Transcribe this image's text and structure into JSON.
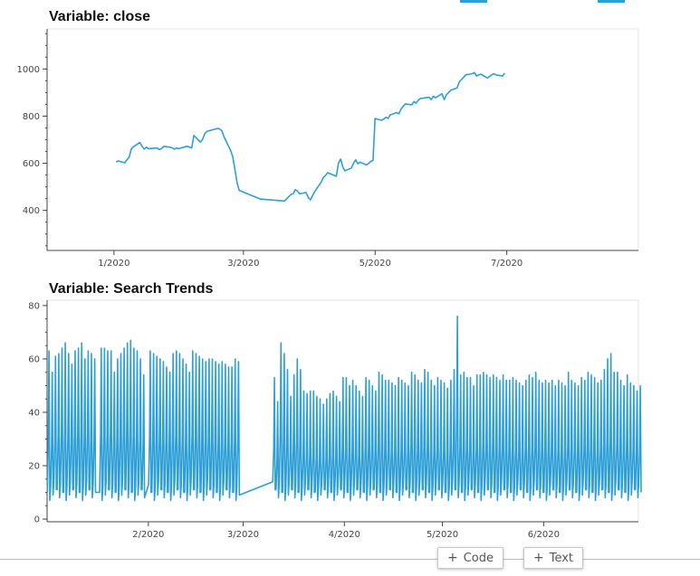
{
  "charts": {
    "close_title": "Variable: close",
    "trends_title": "Variable: Search Trends"
  },
  "toolbar": {
    "code_label": "Code",
    "text_label": "Text",
    "plus_glyph": "+"
  },
  "colors": {
    "series": "#2e9fd6",
    "axis": "#444444",
    "frame": "#e6e6e6"
  },
  "chart_data": [
    {
      "type": "line",
      "title": "Variable: close",
      "xlabel": "",
      "ylabel": "",
      "x_ticks": [
        "1/2020",
        "3/2020",
        "5/2020",
        "7/2020"
      ],
      "x_tick_dates": [
        "2020-01-01",
        "2020-03-01",
        "2020-05-01",
        "2020-07-01"
      ],
      "x_range": [
        "2019-12-01",
        "2020-08-31"
      ],
      "y_ticks": [
        400,
        600,
        800,
        1000
      ],
      "ylim": [
        230,
        1170
      ],
      "grid": false,
      "series": [
        {
          "x": [
            "2020-01-02",
            "2020-01-03",
            "2020-01-06",
            "2020-01-07",
            "2020-01-08",
            "2020-01-09",
            "2020-01-10",
            "2020-01-13",
            "2020-01-14",
            "2020-01-15",
            "2020-01-16",
            "2020-01-17",
            "2020-01-21",
            "2020-01-22",
            "2020-01-23",
            "2020-01-24",
            "2020-01-27",
            "2020-01-28",
            "2020-01-29",
            "2020-01-30",
            "2020-01-31",
            "2020-02-03",
            "2020-02-04",
            "2020-02-05",
            "2020-02-06",
            "2020-02-07",
            "2020-02-10",
            "2020-02-11",
            "2020-02-12",
            "2020-02-13",
            "2020-02-14",
            "2020-02-18",
            "2020-02-19",
            "2020-02-20",
            "2020-02-21",
            "2020-02-24",
            "2020-02-25",
            "2020-02-26",
            "2020-02-27",
            "2020-02-28",
            "2020-03-09",
            "2020-03-20",
            "2020-03-23",
            "2020-03-24",
            "2020-03-25",
            "2020-03-26",
            "2020-03-27",
            "2020-03-30",
            "2020-03-31",
            "2020-04-01",
            "2020-04-02",
            "2020-04-03",
            "2020-04-06",
            "2020-04-07",
            "2020-04-08",
            "2020-04-09",
            "2020-04-13",
            "2020-04-14",
            "2020-04-15",
            "2020-04-16",
            "2020-04-17",
            "2020-04-20",
            "2020-04-21",
            "2020-04-22",
            "2020-04-23",
            "2020-04-24",
            "2020-04-27",
            "2020-04-28",
            "2020-04-29",
            "2020-04-30",
            "2020-05-01",
            "2020-05-04",
            "2020-05-05",
            "2020-05-06",
            "2020-05-07",
            "2020-05-08",
            "2020-05-11",
            "2020-05-12",
            "2020-05-13",
            "2020-05-14",
            "2020-05-15",
            "2020-05-18",
            "2020-05-19",
            "2020-05-20",
            "2020-05-21",
            "2020-05-22",
            "2020-05-26",
            "2020-05-27",
            "2020-05-28",
            "2020-05-29",
            "2020-06-01",
            "2020-06-02",
            "2020-06-03",
            "2020-06-04",
            "2020-06-05",
            "2020-06-08",
            "2020-06-09",
            "2020-06-10",
            "2020-06-11",
            "2020-06-12",
            "2020-06-15",
            "2020-06-16",
            "2020-06-17",
            "2020-06-18",
            "2020-06-19",
            "2020-06-22",
            "2020-06-23",
            "2020-06-24",
            "2020-06-25",
            "2020-06-26",
            "2020-06-29",
            "2020-06-30"
          ],
          "values": [
            605,
            610,
            602,
            615,
            625,
            660,
            670,
            688,
            672,
            660,
            668,
            662,
            665,
            658,
            662,
            672,
            668,
            665,
            660,
            665,
            662,
            670,
            672,
            668,
            665,
            718,
            690,
            700,
            725,
            735,
            738,
            748,
            745,
            738,
            712,
            655,
            628,
            576,
            520,
            485,
            448,
            440,
            468,
            470,
            488,
            482,
            470,
            476,
            455,
            445,
            462,
            480,
            520,
            540,
            548,
            560,
            545,
            600,
            618,
            585,
            568,
            580,
            600,
            615,
            598,
            605,
            593,
            600,
            608,
            612,
            790,
            782,
            788,
            795,
            790,
            805,
            815,
            810,
            830,
            842,
            852,
            848,
            862,
            855,
            868,
            875,
            880,
            870,
            885,
            878,
            895,
            870,
            890,
            900,
            910,
            920,
            945,
            955,
            965,
            975,
            980,
            985,
            970,
            975,
            978,
            962,
            968,
            975,
            980,
            975,
            970,
            982
          ]
        }
      ]
    },
    {
      "type": "line",
      "title": "Variable: Search Trends",
      "xlabel": "",
      "ylabel": "",
      "x_ticks": [
        "2/2020",
        "3/2020",
        "4/2020",
        "5/2020",
        "6/2020"
      ],
      "x_tick_dates": [
        "2020-02-01",
        "2020-03-01",
        "2020-04-01",
        "2020-05-01",
        "2020-06-01"
      ],
      "x_range": [
        "2020-01-01",
        "2020-06-30"
      ],
      "y_ticks": [
        0,
        20,
        40,
        60,
        80
      ],
      "ylim": [
        -1,
        82
      ],
      "grid": false,
      "note_pattern": "hourly series, daily cycle, gap 2020-02-28 to 2020-03-10",
      "series": [
        {
          "daily_peaks": [
            [
              "2020-01-01",
              63
            ],
            [
              "2020-01-02",
              55
            ],
            [
              "2020-01-03",
              61
            ],
            [
              "2020-01-04",
              62
            ],
            [
              "2020-01-05",
              64
            ],
            [
              "2020-01-06",
              66
            ],
            [
              "2020-01-07",
              62
            ],
            [
              "2020-01-08",
              58
            ],
            [
              "2020-01-09",
              63
            ],
            [
              "2020-01-10",
              64
            ],
            [
              "2020-01-11",
              66
            ],
            [
              "2020-01-12",
              60
            ],
            [
              "2020-01-13",
              63
            ],
            [
              "2020-01-14",
              62
            ],
            [
              "2020-01-15",
              60
            ],
            [
              "2020-01-17",
              64
            ],
            [
              "2020-01-18",
              64
            ],
            [
              "2020-01-19",
              63
            ],
            [
              "2020-01-20",
              63
            ],
            [
              "2020-01-21",
              55
            ],
            [
              "2020-01-22",
              60
            ],
            [
              "2020-01-23",
              62
            ],
            [
              "2020-01-24",
              64
            ],
            [
              "2020-01-25",
              66
            ],
            [
              "2020-01-26",
              67
            ],
            [
              "2020-01-27",
              64
            ],
            [
              "2020-01-28",
              63
            ],
            [
              "2020-01-29",
              60
            ],
            [
              "2020-01-30",
              54
            ],
            [
              "2020-02-01",
              63
            ],
            [
              "2020-02-02",
              62
            ],
            [
              "2020-02-03",
              61
            ],
            [
              "2020-02-04",
              60
            ],
            [
              "2020-02-05",
              59
            ],
            [
              "2020-02-06",
              57
            ],
            [
              "2020-02-07",
              55
            ],
            [
              "2020-02-08",
              62
            ],
            [
              "2020-02-09",
              63
            ],
            [
              "2020-02-10",
              62
            ],
            [
              "2020-02-11",
              60
            ],
            [
              "2020-02-12",
              58
            ],
            [
              "2020-02-13",
              55
            ],
            [
              "2020-02-14",
              63
            ],
            [
              "2020-02-15",
              62
            ],
            [
              "2020-02-16",
              61
            ],
            [
              "2020-02-17",
              60
            ],
            [
              "2020-02-18",
              59
            ],
            [
              "2020-02-19",
              60
            ],
            [
              "2020-02-20",
              60
            ],
            [
              "2020-02-21",
              59
            ],
            [
              "2020-02-22",
              58
            ],
            [
              "2020-02-23",
              59
            ],
            [
              "2020-02-24",
              58
            ],
            [
              "2020-02-25",
              57
            ],
            [
              "2020-02-26",
              57
            ],
            [
              "2020-02-27",
              60
            ],
            [
              "2020-02-28",
              59
            ],
            [
              "2020-03-10",
              53
            ],
            [
              "2020-03-11",
              44
            ],
            [
              "2020-03-12",
              66
            ],
            [
              "2020-03-13",
              62
            ],
            [
              "2020-03-14",
              56
            ],
            [
              "2020-03-15",
              46
            ],
            [
              "2020-03-16",
              54
            ],
            [
              "2020-03-17",
              60
            ],
            [
              "2020-03-18",
              56
            ],
            [
              "2020-03-19",
              48
            ],
            [
              "2020-03-20",
              47
            ],
            [
              "2020-03-21",
              48
            ],
            [
              "2020-03-22",
              48
            ],
            [
              "2020-03-23",
              46
            ],
            [
              "2020-03-24",
              45
            ],
            [
              "2020-03-25",
              43
            ],
            [
              "2020-03-26",
              45
            ],
            [
              "2020-03-27",
              47
            ],
            [
              "2020-03-28",
              48
            ],
            [
              "2020-03-29",
              46
            ],
            [
              "2020-03-30",
              44
            ],
            [
              "2020-03-31",
              53
            ],
            [
              "2020-04-01",
              53
            ],
            [
              "2020-04-02",
              50
            ],
            [
              "2020-04-03",
              52
            ],
            [
              "2020-04-04",
              50
            ],
            [
              "2020-04-05",
              48
            ],
            [
              "2020-04-06",
              46
            ],
            [
              "2020-04-07",
              53
            ],
            [
              "2020-04-08",
              52
            ],
            [
              "2020-04-09",
              50
            ],
            [
              "2020-04-10",
              48
            ],
            [
              "2020-04-11",
              55
            ],
            [
              "2020-04-12",
              54
            ],
            [
              "2020-04-13",
              52
            ],
            [
              "2020-04-14",
              52
            ],
            [
              "2020-04-15",
              51
            ],
            [
              "2020-04-16",
              50
            ],
            [
              "2020-04-17",
              53
            ],
            [
              "2020-04-18",
              52
            ],
            [
              "2020-04-19",
              51
            ],
            [
              "2020-04-20",
              50
            ],
            [
              "2020-04-21",
              55
            ],
            [
              "2020-04-22",
              54
            ],
            [
              "2020-04-23",
              52
            ],
            [
              "2020-04-24",
              51
            ],
            [
              "2020-04-25",
              56
            ],
            [
              "2020-04-26",
              55
            ],
            [
              "2020-04-27",
              52
            ],
            [
              "2020-04-28",
              50
            ],
            [
              "2020-04-29",
              53
            ],
            [
              "2020-04-30",
              52
            ],
            [
              "2020-05-01",
              51
            ],
            [
              "2020-05-02",
              49
            ],
            [
              "2020-05-03",
              52
            ],
            [
              "2020-05-04",
              56
            ],
            [
              "2020-05-05",
              76
            ],
            [
              "2020-05-06",
              54
            ],
            [
              "2020-05-07",
              55
            ],
            [
              "2020-05-08",
              53
            ],
            [
              "2020-05-09",
              53
            ],
            [
              "2020-05-10",
              50
            ],
            [
              "2020-05-11",
              54
            ],
            [
              "2020-05-12",
              54
            ],
            [
              "2020-05-13",
              55
            ],
            [
              "2020-05-14",
              54
            ],
            [
              "2020-05-15",
              53
            ],
            [
              "2020-05-16",
              54
            ],
            [
              "2020-05-17",
              53
            ],
            [
              "2020-05-18",
              52
            ],
            [
              "2020-05-19",
              54
            ],
            [
              "2020-05-20",
              52
            ],
            [
              "2020-05-21",
              52
            ],
            [
              "2020-05-22",
              53
            ],
            [
              "2020-05-23",
              52
            ],
            [
              "2020-05-24",
              51
            ],
            [
              "2020-05-25",
              50
            ],
            [
              "2020-05-26",
              52
            ],
            [
              "2020-05-27",
              54
            ],
            [
              "2020-05-28",
              53
            ],
            [
              "2020-05-29",
              55
            ],
            [
              "2020-05-30",
              52
            ],
            [
              "2020-05-31",
              51
            ],
            [
              "2020-06-01",
              52
            ],
            [
              "2020-06-02",
              51
            ],
            [
              "2020-06-03",
              52
            ],
            [
              "2020-06-04",
              50
            ],
            [
              "2020-06-05",
              52
            ],
            [
              "2020-06-06",
              51
            ],
            [
              "2020-06-07",
              50
            ],
            [
              "2020-06-08",
              55
            ],
            [
              "2020-06-09",
              52
            ],
            [
              "2020-06-10",
              51
            ],
            [
              "2020-06-11",
              50
            ],
            [
              "2020-06-12",
              53
            ],
            [
              "2020-06-13",
              52
            ],
            [
              "2020-06-14",
              55
            ],
            [
              "2020-06-15",
              54
            ],
            [
              "2020-06-16",
              53
            ],
            [
              "2020-06-17",
              51
            ],
            [
              "2020-06-18",
              52
            ],
            [
              "2020-06-19",
              56
            ],
            [
              "2020-06-20",
              60
            ],
            [
              "2020-06-21",
              62
            ],
            [
              "2020-06-22",
              55
            ],
            [
              "2020-06-23",
              55
            ],
            [
              "2020-06-24",
              52
            ],
            [
              "2020-06-25",
              50
            ],
            [
              "2020-06-26",
              54
            ],
            [
              "2020-06-27",
              51
            ],
            [
              "2020-06-28",
              50
            ],
            [
              "2020-06-29",
              48
            ],
            [
              "2020-06-30",
              50
            ]
          ],
          "daily_low": 8
        }
      ]
    }
  ]
}
